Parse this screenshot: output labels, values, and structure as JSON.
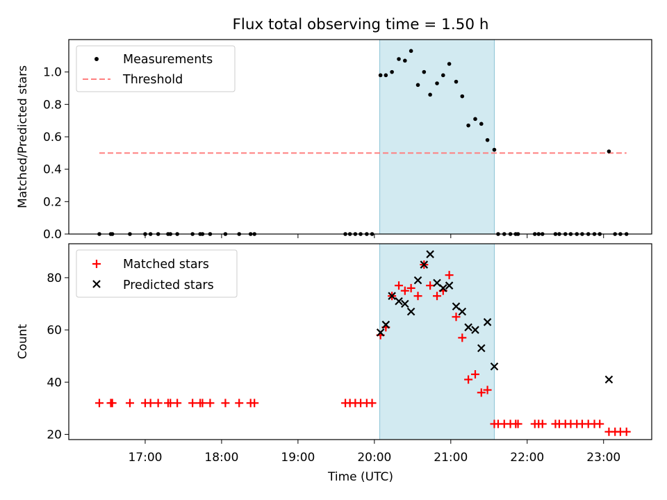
{
  "figure": {
    "title": "Flux total observing time = 1.50 h",
    "xlabel": "Time (UTC)",
    "x_tick_labels": [
      "17:00",
      "18:00",
      "19:00",
      "20:00",
      "21:00",
      "22:00",
      "23:00"
    ]
  },
  "colors": {
    "measurements": "#000000",
    "threshold": "#ff7f7f",
    "matched": "#ff0000",
    "predicted": "#000000",
    "span": "#add8e6"
  },
  "chart_data": [
    {
      "type": "scatter",
      "ylabel": "Matched/Predicted stars",
      "x_unit": "hours UTC",
      "xlim": [
        16.0,
        23.63
      ],
      "ylim": [
        0,
        1.2
      ],
      "y_ticks": [
        "0.0",
        "0.2",
        "0.4",
        "0.6",
        "0.8",
        "1.0"
      ],
      "highlight_span": [
        20.07,
        21.57
      ],
      "legend": {
        "position": "top-left",
        "entries": [
          "Measurements",
          "Threshold"
        ]
      },
      "threshold": {
        "y": 0.5,
        "x_range": [
          16.4,
          23.3
        ]
      },
      "series": [
        {
          "name": "Measurements",
          "marker": "dot",
          "points": [
            [
              16.4,
              0
            ],
            [
              16.55,
              0
            ],
            [
              16.57,
              0
            ],
            [
              16.8,
              0
            ],
            [
              17.0,
              0
            ],
            [
              17.07,
              0
            ],
            [
              17.17,
              0
            ],
            [
              17.3,
              0
            ],
            [
              17.33,
              0
            ],
            [
              17.42,
              0
            ],
            [
              17.62,
              0
            ],
            [
              17.72,
              0
            ],
            [
              17.75,
              0
            ],
            [
              17.85,
              0
            ],
            [
              18.05,
              0
            ],
            [
              18.23,
              0
            ],
            [
              18.38,
              0
            ],
            [
              18.43,
              0
            ],
            [
              19.62,
              0
            ],
            [
              19.68,
              0
            ],
            [
              19.75,
              0
            ],
            [
              19.82,
              0
            ],
            [
              19.9,
              0
            ],
            [
              19.97,
              0
            ],
            [
              20.08,
              0.98
            ],
            [
              20.15,
              0.98
            ],
            [
              20.23,
              1.0
            ],
            [
              20.32,
              1.08
            ],
            [
              20.4,
              1.07
            ],
            [
              20.48,
              1.13
            ],
            [
              20.57,
              0.92
            ],
            [
              20.65,
              1.0
            ],
            [
              20.73,
              0.86
            ],
            [
              20.82,
              0.93
            ],
            [
              20.9,
              0.98
            ],
            [
              20.98,
              1.05
            ],
            [
              21.07,
              0.94
            ],
            [
              21.15,
              0.85
            ],
            [
              21.23,
              0.67
            ],
            [
              21.32,
              0.71
            ],
            [
              21.4,
              0.68
            ],
            [
              21.48,
              0.58
            ],
            [
              21.57,
              0.52
            ],
            [
              21.62,
              0
            ],
            [
              21.7,
              0
            ],
            [
              21.78,
              0
            ],
            [
              21.85,
              0
            ],
            [
              21.88,
              0
            ],
            [
              22.1,
              0
            ],
            [
              22.15,
              0
            ],
            [
              22.2,
              0
            ],
            [
              22.37,
              0
            ],
            [
              22.42,
              0
            ],
            [
              22.5,
              0
            ],
            [
              22.57,
              0
            ],
            [
              22.65,
              0
            ],
            [
              22.72,
              0
            ],
            [
              22.8,
              0
            ],
            [
              22.88,
              0
            ],
            [
              22.95,
              0
            ],
            [
              23.07,
              0.51
            ],
            [
              23.15,
              0
            ],
            [
              23.22,
              0
            ],
            [
              23.3,
              0
            ]
          ]
        }
      ]
    },
    {
      "type": "scatter",
      "ylabel": "Count",
      "x_unit": "hours UTC",
      "xlim": [
        16.0,
        23.63
      ],
      "ylim": [
        18,
        93
      ],
      "y_ticks": [
        "20",
        "40",
        "60",
        "80"
      ],
      "highlight_span": [
        20.07,
        21.57
      ],
      "legend": {
        "position": "top-left",
        "entries": [
          "Matched stars",
          "Predicted stars"
        ]
      },
      "series": [
        {
          "name": "Matched stars",
          "marker": "plus",
          "points": [
            [
              16.4,
              32
            ],
            [
              16.55,
              32
            ],
            [
              16.57,
              32
            ],
            [
              16.8,
              32
            ],
            [
              17.0,
              32
            ],
            [
              17.07,
              32
            ],
            [
              17.17,
              32
            ],
            [
              17.3,
              32
            ],
            [
              17.33,
              32
            ],
            [
              17.42,
              32
            ],
            [
              17.62,
              32
            ],
            [
              17.72,
              32
            ],
            [
              17.75,
              32
            ],
            [
              17.85,
              32
            ],
            [
              18.05,
              32
            ],
            [
              18.23,
              32
            ],
            [
              18.38,
              32
            ],
            [
              18.43,
              32
            ],
            [
              19.62,
              32
            ],
            [
              19.68,
              32
            ],
            [
              19.75,
              32
            ],
            [
              19.82,
              32
            ],
            [
              19.9,
              32
            ],
            [
              19.97,
              32
            ],
            [
              20.08,
              58
            ],
            [
              20.15,
              61
            ],
            [
              20.23,
              73
            ],
            [
              20.32,
              77
            ],
            [
              20.4,
              75
            ],
            [
              20.48,
              76
            ],
            [
              20.57,
              73
            ],
            [
              20.65,
              85
            ],
            [
              20.73,
              77
            ],
            [
              20.82,
              73
            ],
            [
              20.9,
              75
            ],
            [
              20.98,
              81
            ],
            [
              21.07,
              65
            ],
            [
              21.15,
              57
            ],
            [
              21.23,
              41
            ],
            [
              21.32,
              43
            ],
            [
              21.4,
              36
            ],
            [
              21.48,
              37
            ],
            [
              21.57,
              24
            ],
            [
              21.62,
              24
            ],
            [
              21.7,
              24
            ],
            [
              21.78,
              24
            ],
            [
              21.85,
              24
            ],
            [
              21.88,
              24
            ],
            [
              22.1,
              24
            ],
            [
              22.15,
              24
            ],
            [
              22.2,
              24
            ],
            [
              22.37,
              24
            ],
            [
              22.42,
              24
            ],
            [
              22.5,
              24
            ],
            [
              22.57,
              24
            ],
            [
              22.65,
              24
            ],
            [
              22.72,
              24
            ],
            [
              22.8,
              24
            ],
            [
              22.88,
              24
            ],
            [
              22.95,
              24
            ],
            [
              23.07,
              21
            ],
            [
              23.15,
              21
            ],
            [
              23.22,
              21
            ],
            [
              23.3,
              21
            ]
          ]
        },
        {
          "name": "Predicted stars",
          "marker": "x",
          "points": [
            [
              20.08,
              59
            ],
            [
              20.15,
              62
            ],
            [
              20.23,
              73
            ],
            [
              20.32,
              71
            ],
            [
              20.4,
              70
            ],
            [
              20.48,
              67
            ],
            [
              20.57,
              79
            ],
            [
              20.65,
              85
            ],
            [
              20.73,
              89
            ],
            [
              20.82,
              78
            ],
            [
              20.9,
              76
            ],
            [
              20.98,
              77
            ],
            [
              21.07,
              69
            ],
            [
              21.15,
              67
            ],
            [
              21.23,
              61
            ],
            [
              21.32,
              60
            ],
            [
              21.4,
              53
            ],
            [
              21.48,
              63
            ],
            [
              21.57,
              46
            ],
            [
              23.07,
              41
            ]
          ]
        }
      ]
    }
  ]
}
